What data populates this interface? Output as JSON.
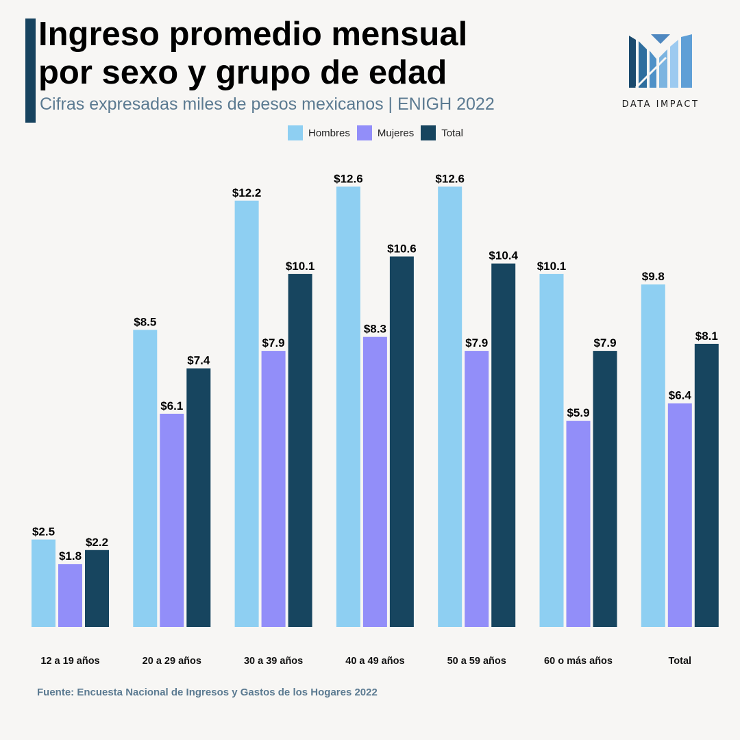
{
  "header": {
    "title_line1": "Ingreso promedio mensual",
    "title_line2": "por sexo y grupo de edad",
    "subtitle": "Cifras expresadas miles de pesos mexicanos | ENIGH 2022"
  },
  "logo": {
    "text": "DATA IMPACT",
    "icon": "data-impact-logo-icon"
  },
  "legend": [
    {
      "label": "Hombres",
      "color": "#8ecff2"
    },
    {
      "label": "Mujeres",
      "color": "#928ef9"
    },
    {
      "label": "Total",
      "color": "#17455f"
    }
  ],
  "chart_data": {
    "type": "bar",
    "title": "Ingreso promedio mensual por sexo y grupo de edad",
    "subtitle": "Cifras expresadas miles de pesos mexicanos | ENIGH 2022",
    "xlabel": "",
    "ylabel": "",
    "ylim": [
      0,
      14
    ],
    "grid": false,
    "legend_position": "top-center",
    "value_prefix": "$",
    "categories": [
      "12 a 19 años",
      "20 a 29 años",
      "30 a 39 años",
      "40 a 49 años",
      "50 a 59 años",
      "60 o más años",
      "Total"
    ],
    "series": [
      {
        "name": "Hombres",
        "color": "#8ecff2",
        "values": [
          2.5,
          8.5,
          12.2,
          12.6,
          12.6,
          10.1,
          9.8
        ]
      },
      {
        "name": "Mujeres",
        "color": "#928ef9",
        "values": [
          1.8,
          6.1,
          7.9,
          8.3,
          7.9,
          5.9,
          6.4
        ]
      },
      {
        "name": "Total",
        "color": "#17455f",
        "values": [
          2.2,
          7.4,
          10.1,
          10.6,
          10.4,
          7.9,
          8.1
        ]
      }
    ]
  },
  "footer": {
    "source": "Fuente: Encuesta Nacional de Ingresos y Gastos de los Hogares 2022"
  }
}
